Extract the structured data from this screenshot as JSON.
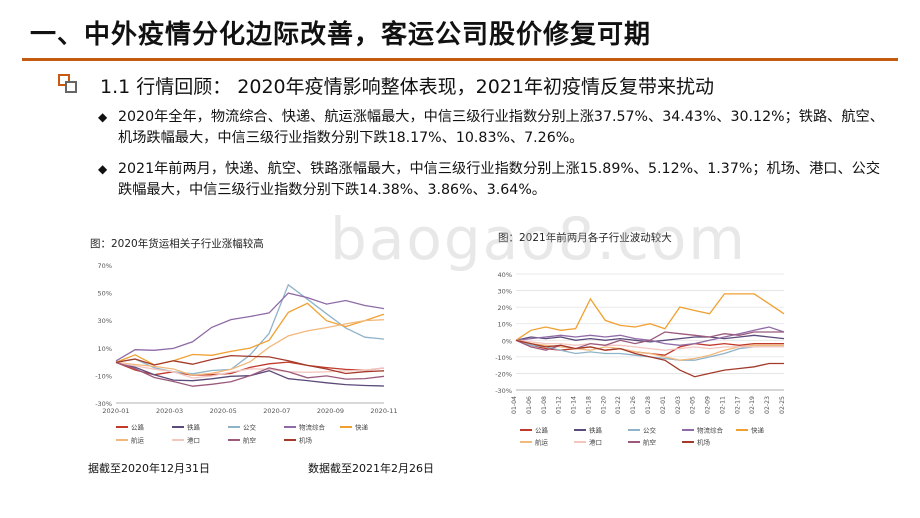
{
  "header": {
    "title": "一、中外疫情分化边际改善，客运公司股价修复可期",
    "subtitle": "1.1  行情回顾： 2020年疫情影响整体表现，2021年初疫情反复带来扰动"
  },
  "bullets": [
    "2020年全年，物流综合、快递、航运涨幅最大，中信三级行业指数分别上涨37.57%、34.43%、30.12%；铁路、航空、机场跌幅最大，中信三级行业指数分别下跌18.17%、10.83%、7.26%。",
    "2021年前两月，快递、航空、铁路涨幅最大，中信三级行业指数分别上涨15.89%、5.12%、1.37%；机场、港口、公交跌幅最大，中信三级行业指数分别下跌14.38%、3.86%、3.64%。"
  ],
  "watermark": "baogao8.com",
  "colors": {
    "accent": "#c55a11",
    "公路": "#c0392b",
    "铁路": "#5b4a7a",
    "公交": "#8fb3c9",
    "物流综合": "#8e6aa6",
    "快递": "#f0a030",
    "航运": "#f2b97c",
    "港口": "#f4c6c0",
    "航空": "#9b5a7c",
    "机场": "#a33a2a"
  },
  "chart_data": [
    {
      "type": "line",
      "title": "图：2020年货运相关子行业涨幅较高",
      "xlabel": "",
      "ylabel": "",
      "ylim": [
        -30,
        70
      ],
      "yticks": [
        "70%",
        "50%",
        "30%",
        "10%",
        "-10%",
        "-30%"
      ],
      "x_ticks": [
        "2020-01",
        "2020-03",
        "2020-05",
        "2020-07",
        "2020-09",
        "2020-11"
      ],
      "legend": [
        "公路",
        "铁路",
        "公交",
        "物流综合",
        "快递",
        "航运",
        "港口",
        "航空",
        "机场"
      ],
      "note": "据截至2020年12月31日",
      "series": [
        {
          "name": "公路",
          "values": [
            0,
            -6,
            -10,
            -8,
            -10,
            -9,
            -8,
            -4,
            -2,
            -1,
            -3,
            -4,
            -5,
            -6,
            -5
          ]
        },
        {
          "name": "铁路",
          "values": [
            0,
            -4,
            -10,
            -14,
            -14,
            -12,
            -10,
            -10,
            -7,
            -13,
            -14,
            -15,
            -16,
            -17,
            -18
          ]
        },
        {
          "name": "公交",
          "values": [
            0,
            2,
            -5,
            -8,
            -9,
            -6,
            -5,
            5,
            20,
            55,
            45,
            35,
            25,
            18,
            16
          ]
        },
        {
          "name": "物流综合",
          "values": [
            0,
            8,
            8,
            10,
            15,
            25,
            30,
            32,
            35,
            50,
            47,
            42,
            44,
            40,
            38
          ]
        },
        {
          "name": "快递",
          "values": [
            0,
            5,
            -3,
            0,
            5,
            5,
            8,
            10,
            15,
            35,
            42,
            30,
            26,
            30,
            34
          ]
        },
        {
          "name": "航运",
          "values": [
            0,
            -2,
            -4,
            -6,
            -10,
            -8,
            -5,
            0,
            10,
            18,
            22,
            25,
            28,
            30,
            30
          ]
        },
        {
          "name": "港口",
          "values": [
            0,
            -3,
            -6,
            -8,
            -12,
            -10,
            -7,
            -5,
            -6,
            -8,
            -8,
            -7,
            -6,
            -6,
            -5
          ]
        },
        {
          "name": "航空",
          "values": [
            0,
            -5,
            -12,
            -15,
            -18,
            -16,
            -14,
            -10,
            -5,
            -8,
            -12,
            -10,
            -12,
            -12,
            -11
          ]
        },
        {
          "name": "机场",
          "values": [
            0,
            2,
            -3,
            0,
            -2,
            2,
            5,
            4,
            3,
            0,
            -3,
            -5,
            -8,
            -7,
            -7
          ]
        }
      ]
    },
    {
      "type": "line",
      "title": "图：2021年前两月各子行业波动较大",
      "xlabel": "",
      "ylabel": "",
      "ylim": [
        -30,
        40
      ],
      "yticks": [
        "40%",
        "30%",
        "20%",
        "10%",
        "0%",
        "-10%",
        "-20%",
        "-30%"
      ],
      "x_ticks": [
        "01-04",
        "01-06",
        "01-08",
        "01-12",
        "01-14",
        "01-18",
        "01-20",
        "01-22",
        "01-26",
        "01-28",
        "02-01",
        "02-03",
        "02-05",
        "02-09",
        "02-11",
        "02-17",
        "02-19",
        "02-23",
        "02-25"
      ],
      "legend": [
        "公路",
        "铁路",
        "公交",
        "物流综合",
        "快递",
        "航运",
        "港口",
        "航空",
        "机场"
      ],
      "note": "数据截至2021年2月26日",
      "series": [
        {
          "name": "公路",
          "values": [
            0,
            -3,
            -5,
            -6,
            -5,
            -4,
            -6,
            -5,
            -7,
            -8,
            -9,
            -4,
            -2,
            -3,
            -2,
            -3,
            -2,
            -2,
            -2
          ]
        },
        {
          "name": "铁路",
          "values": [
            0,
            2,
            1,
            2,
            0,
            1,
            0,
            1,
            0,
            -1,
            0,
            1,
            2,
            2,
            1,
            2,
            3,
            2,
            1
          ]
        },
        {
          "name": "公交",
          "values": [
            0,
            -3,
            -4,
            -6,
            -8,
            -7,
            -8,
            -8,
            -9,
            -10,
            -11,
            -12,
            -12,
            -10,
            -8,
            -5,
            -4,
            -4,
            -4
          ]
        },
        {
          "name": "物流综合",
          "values": [
            0,
            1,
            2,
            3,
            2,
            3,
            2,
            3,
            1,
            0,
            -2,
            -3,
            -2,
            0,
            2,
            4,
            6,
            8,
            5
          ]
        },
        {
          "name": "快递",
          "values": [
            0,
            6,
            8,
            6,
            7,
            25,
            12,
            9,
            8,
            10,
            7,
            20,
            18,
            16,
            28,
            28,
            28,
            22,
            16
          ]
        },
        {
          "name": "航运",
          "values": [
            0,
            -2,
            -3,
            -4,
            -5,
            -6,
            -4,
            -5,
            -7,
            -8,
            -10,
            -12,
            -11,
            -9,
            -6,
            -4,
            -3,
            -3,
            -3
          ]
        },
        {
          "name": "港口",
          "values": [
            0,
            -1,
            -2,
            -2,
            -3,
            -2,
            -3,
            -3,
            -4,
            -5,
            -6,
            -5,
            -4,
            -5,
            -4,
            -4,
            -4,
            -4,
            -4
          ]
        },
        {
          "name": "航空",
          "values": [
            0,
            -4,
            -6,
            -3,
            -5,
            -2,
            -3,
            0,
            -2,
            0,
            5,
            4,
            3,
            2,
            4,
            3,
            5,
            5,
            5
          ]
        },
        {
          "name": "机场",
          "values": [
            0,
            -2,
            -4,
            -3,
            -5,
            -4,
            -6,
            -5,
            -8,
            -10,
            -12,
            -18,
            -22,
            -20,
            -18,
            -17,
            -16,
            -14,
            -14
          ]
        }
      ]
    }
  ]
}
